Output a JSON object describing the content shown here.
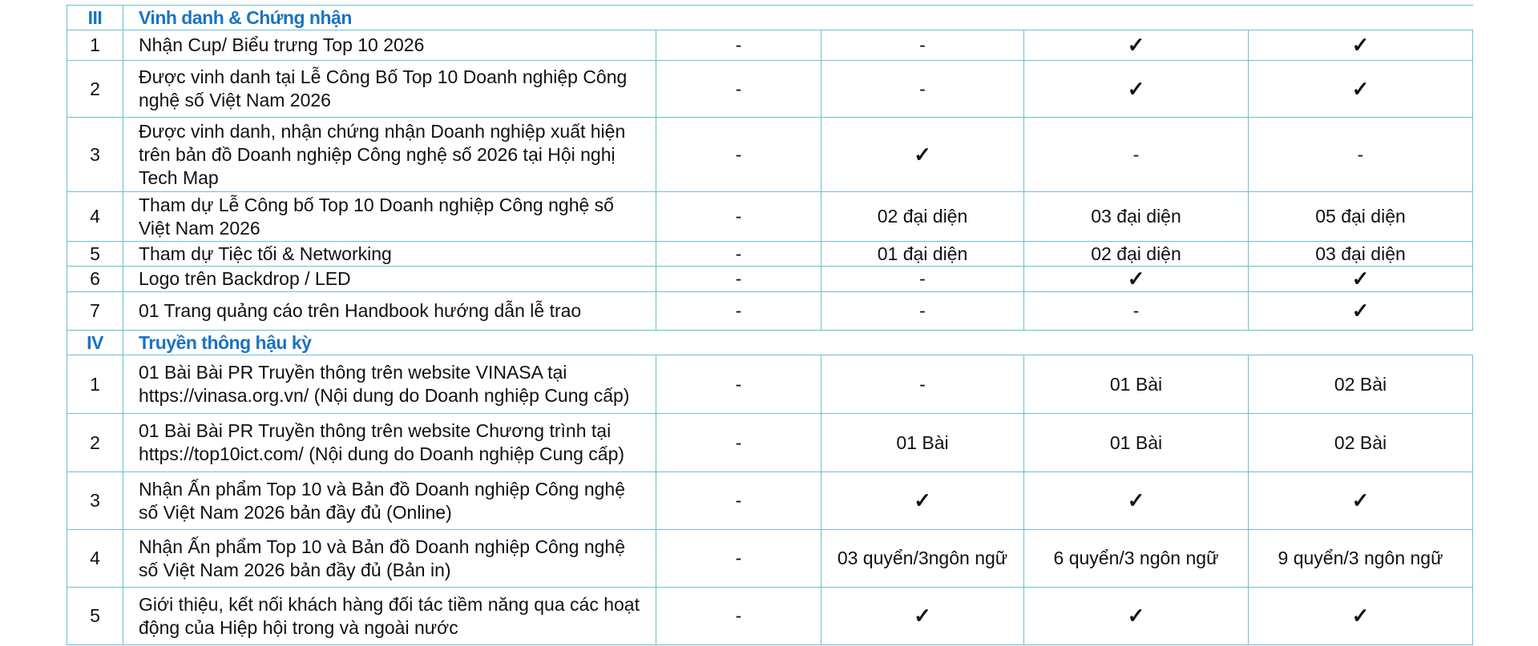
{
  "sections": [
    {
      "num": "III",
      "title": "Vinh danh & Chứng nhận",
      "rows": [
        {
          "num": "1",
          "desc": "Nhận Cup/ Biểu trưng Top 10 2026",
          "c1": "-",
          "c2": "-",
          "c3": "✓",
          "c4": "✓"
        },
        {
          "num": "2",
          "desc": "Được vinh danh tại Lễ Công Bố Top 10 Doanh nghiệp Công nghệ số Việt Nam 2026",
          "c1": "-",
          "c2": "-",
          "c3": "✓",
          "c4": "✓"
        },
        {
          "num": "3",
          "desc": "Được vinh danh, nhận chứng nhận Doanh nghiệp xuất hiện trên bản đồ Doanh nghiệp Công nghệ số 2026 tại Hội nghị Tech Map",
          "c1": "-",
          "c2": "✓",
          "c3": "-",
          "c4": "-"
        },
        {
          "num": "4",
          "desc": "Tham dự Lễ Công bố Top 10 Doanh nghiệp Công nghệ số Việt Nam 2026",
          "c1": "-",
          "c2": "02 đại diện",
          "c3": "03 đại diện",
          "c4": "05 đại diện"
        },
        {
          "num": "5",
          "desc": "Tham dự Tiệc tối & Networking",
          "c1": "-",
          "c2": "01 đại diện",
          "c3": "02 đại diện",
          "c4": "03 đại diện"
        },
        {
          "num": "6",
          "desc": "Logo trên Backdrop / LED",
          "c1": "-",
          "c2": "-",
          "c3": "✓",
          "c4": "✓"
        },
        {
          "num": "7",
          "desc": "01 Trang quảng cáo trên Handbook hướng dẫn lễ trao",
          "c1": "-",
          "c2": "-",
          "c3": "-",
          "c4": "✓"
        }
      ]
    },
    {
      "num": "IV",
      "title": "Truyền thông hậu kỳ",
      "rows": [
        {
          "num": "1",
          "desc": "01 Bài Bài PR Truyền thông trên website VINASA tại https://vinasa.org.vn/ (Nội dung do Doanh nghiệp Cung cấp)",
          "c1": "-",
          "c2": "-",
          "c3": "01 Bài",
          "c4": "02 Bài"
        },
        {
          "num": "2",
          "desc": "01 Bài Bài PR Truyền thông trên website Chương trình tại https://top10ict.com/ (Nội dung do Doanh nghiệp Cung cấp)",
          "c1": "-",
          "c2": "01 Bài",
          "c3": "01 Bài",
          "c4": "02 Bài"
        },
        {
          "num": "3",
          "desc": "Nhận Ấn phẩm Top 10 và Bản đồ Doanh nghiệp Công nghệ số Việt Nam 2026 bản đầy đủ (Online)",
          "c1": "-",
          "c2": "✓",
          "c3": "✓",
          "c4": "✓"
        },
        {
          "num": "4",
          "desc": "Nhận Ấn phẩm Top 10 và Bản đồ Doanh nghiệp Công nghệ số Việt Nam 2026 bản đầy đủ (Bản in)",
          "c1": "-",
          "c2": "03 quyển/3ngôn ngữ",
          "c3": "6 quyển/3 ngôn ngữ",
          "c4": "9 quyển/3 ngôn ngữ"
        },
        {
          "num": "5",
          "desc": "Giới thiệu, kết nối khách hàng đối tác tiềm năng qua các hoạt động của Hiệp hội trong và ngoài nước",
          "c1": "-",
          "c2": "✓",
          "c3": "✓",
          "c4": "✓"
        }
      ]
    }
  ],
  "colors": {
    "border": "#6fbfd3",
    "section_text": "#1a73c4"
  }
}
